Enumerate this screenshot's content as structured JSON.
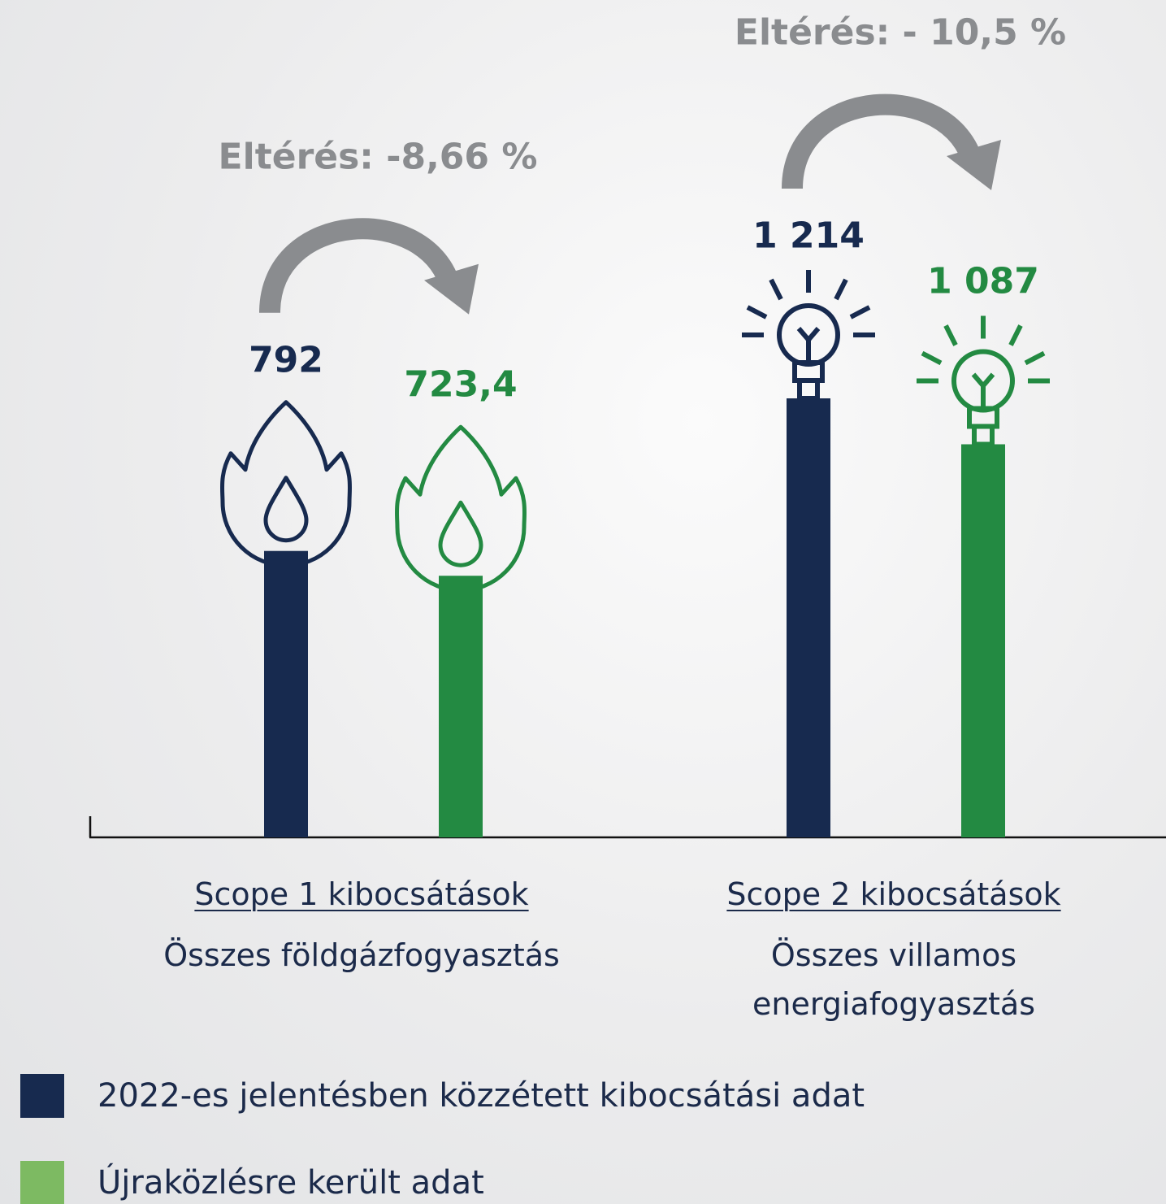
{
  "chart_data": {
    "type": "bar",
    "categories": [
      "Scope 1 kibocsátások",
      "Scope 2 kibocsátások"
    ],
    "descriptions": [
      "Összes földgázfogyasztás",
      "Összes villamos energiafogyasztás"
    ],
    "annotations": [
      "Eltérés: -8,66 %",
      "Eltérés: - 10,5 %"
    ],
    "series": [
      {
        "name": "2022-es jelentésben közzétett kibocsátási adat",
        "color": "#172a4f",
        "values": [
          792,
          1214
        ],
        "value_labels": [
          "792",
          "1 214"
        ]
      },
      {
        "name": "Újraközlésre került adat",
        "color": "#238a42",
        "legend_color": "#7dba62",
        "values": [
          723.4,
          1087
        ],
        "value_labels": [
          "723,4",
          "1 087"
        ]
      }
    ]
  }
}
